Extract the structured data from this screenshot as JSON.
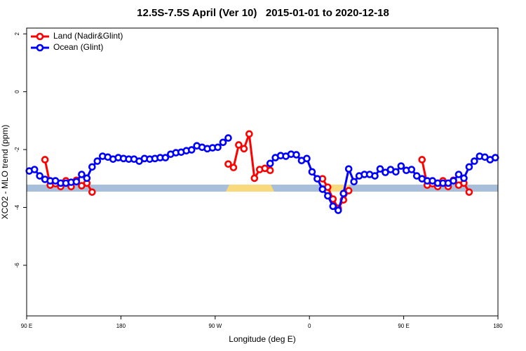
{
  "chart_data": {
    "type": "line",
    "title": "12.5S-7.5S April (Ver 10)   2015-01-01 to 2020-12-18",
    "x_label": "Longitude (deg E)",
    "y_label": "XCO2 - MLO trend (ppm)",
    "xlim": [
      90,
      540
    ],
    "ylim": [
      -7.75,
      2.2
    ],
    "xticks": [
      {
        "value": 90,
        "label": "90 E"
      },
      180,
      {
        "value": 270,
        "label": "90 W"
      },
      {
        "value": 360,
        "label": "0"
      },
      {
        "value": 450,
        "label": "90 E"
      },
      {
        "value": 540,
        "label": "180"
      }
    ],
    "yticks": [
      2,
      0,
      -2,
      -4,
      -6
    ],
    "legend": "top-left",
    "x": [
      92.5,
      97.5,
      102.5,
      107.5,
      112.5,
      117.5,
      122.5,
      127.5,
      132.5,
      137.5,
      142.5,
      147.5,
      152.5,
      157.5,
      162.5,
      167.5,
      172.5,
      177.5,
      182.5,
      187.5,
      192.5,
      197.5,
      202.5,
      207.5,
      212.5,
      217.5,
      222.5,
      227.5,
      232.5,
      237.5,
      242.5,
      247.5,
      252.5,
      257.5,
      262.5,
      267.5,
      272.5,
      277.5,
      282.5,
      287.5,
      292.5,
      297.5,
      302.5,
      307.5,
      312.5,
      317.5,
      322.5,
      327.5,
      332.5,
      337.5,
      342.5,
      347.5,
      352.5,
      357.5,
      362.5,
      367.5,
      372.5,
      377.5,
      382.5,
      387.5,
      392.5,
      397.5,
      402.5,
      407.5,
      412.5,
      417.5,
      422.5,
      427.5,
      432.5,
      437.5,
      442.5,
      447.5,
      452.5,
      457.5,
      462.5,
      467.5,
      472.5,
      477.5,
      482.5,
      487.5,
      492.5,
      497.5,
      502.5,
      507.5,
      512.5,
      517.5,
      522.5,
      527.5,
      532.5,
      537.5
    ],
    "series": [
      {
        "name": "Land (Nadir&Glint)",
        "color": "#ff0000",
        "values": [
          null,
          null,
          null,
          -2.35,
          -3.23,
          -3.18,
          -3.28,
          -3.08,
          -3.28,
          -3.06,
          -3.25,
          -3.16,
          -3.47,
          null,
          null,
          null,
          null,
          null,
          null,
          null,
          null,
          null,
          null,
          null,
          null,
          null,
          null,
          null,
          null,
          null,
          null,
          null,
          null,
          null,
          null,
          null,
          null,
          null,
          -2.5,
          -2.62,
          -1.84,
          -1.97,
          -1.46,
          -2.99,
          -2.69,
          -2.65,
          -2.72,
          null,
          null,
          null,
          null,
          null,
          null,
          null,
          null,
          null,
          -3.01,
          -3.3,
          -3.71,
          -4.03,
          -3.74,
          -3.42,
          null,
          null,
          null,
          null,
          null,
          null,
          null,
          null,
          null,
          null,
          null,
          null,
          null,
          -2.35,
          -3.23,
          -3.18,
          -3.28,
          -3.08,
          -3.28,
          -3.06,
          -3.23,
          -3.16,
          -3.47,
          null,
          null,
          null,
          null,
          null
        ]
      },
      {
        "name": "Ocean (Glint)",
        "color": "#0000ff",
        "values": [
          -2.74,
          -2.69,
          -2.91,
          -3.03,
          -3.08,
          -3.08,
          -3.16,
          -3.16,
          -3.13,
          -3.11,
          -2.86,
          -2.99,
          -2.6,
          -2.4,
          -2.23,
          -2.26,
          -2.33,
          -2.28,
          -2.31,
          -2.33,
          -2.33,
          -2.4,
          -2.31,
          -2.33,
          -2.31,
          -2.28,
          -2.28,
          -2.16,
          -2.11,
          -2.09,
          -2.04,
          -2.01,
          -1.87,
          -1.92,
          -1.97,
          -1.94,
          -1.92,
          -1.75,
          -1.6,
          null,
          null,
          null,
          null,
          null,
          null,
          null,
          -2.48,
          -2.28,
          -2.21,
          -2.23,
          -2.16,
          -2.18,
          -2.38,
          -2.31,
          -2.77,
          -3.01,
          -3.37,
          -3.6,
          -3.96,
          -4.1,
          -3.52,
          -2.67,
          -3.11,
          -2.91,
          -2.86,
          -2.86,
          -2.91,
          -2.67,
          -2.79,
          -2.69,
          -2.77,
          -2.57,
          -2.72,
          -2.69,
          -2.91,
          -3.01,
          -3.08,
          -3.08,
          -3.16,
          -3.16,
          -3.16,
          -3.08,
          -2.86,
          -2.99,
          -2.6,
          -2.4,
          -2.23,
          -2.26,
          -2.35,
          -2.28
        ]
      }
    ]
  }
}
